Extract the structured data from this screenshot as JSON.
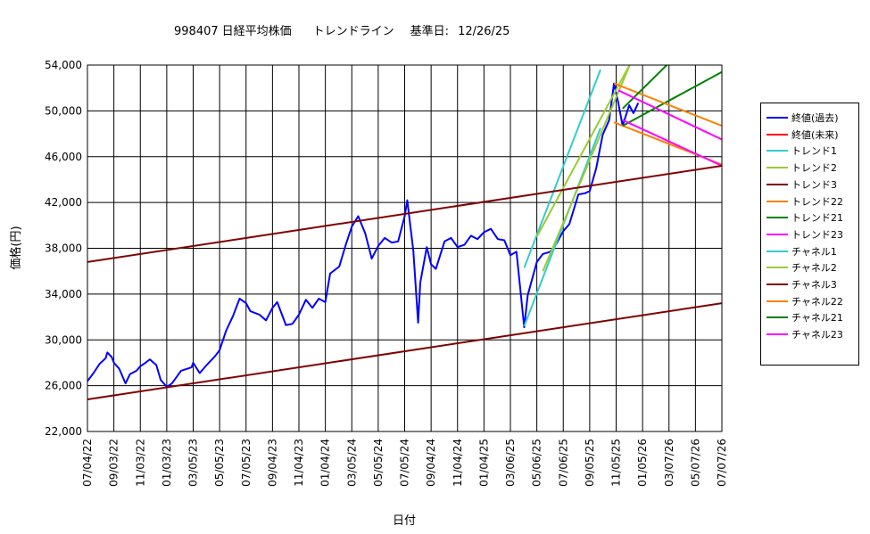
{
  "title": {
    "code": "998407",
    "name": "日経平均株価",
    "subtitle": "トレンドライン",
    "base_label": "基準日:",
    "base_date": "12/26/25"
  },
  "chart_data": {
    "type": "line",
    "title": "998407日経平均株価　トレンドライン　基準日: 12/26/25",
    "xlabel": "日付",
    "ylabel": "価格(円)",
    "ylim": [
      22000,
      54000
    ],
    "yticks": [
      22000,
      26000,
      30000,
      34000,
      38000,
      42000,
      46000,
      50000,
      54000
    ],
    "ytick_labels": [
      "22,000",
      "26,000",
      "30,000",
      "34,000",
      "38,000",
      "42,000",
      "46,000",
      "50,000",
      "54,000"
    ],
    "xlim": [
      "07/04/22",
      "07/07/26"
    ],
    "xtick_labels": [
      "07/04/22",
      "09/03/22",
      "11/03/22",
      "01/03/23",
      "03/05/23",
      "05/05/23",
      "07/05/23",
      "09/04/23",
      "11/04/23",
      "01/04/24",
      "03/05/24",
      "05/05/24",
      "07/05/24",
      "09/04/24",
      "11/04/24",
      "01/04/25",
      "03/06/25",
      "05/06/25",
      "07/06/25",
      "09/05/25",
      "11/05/25",
      "01/05/26",
      "03/07/26",
      "05/07/26",
      "07/07/26"
    ],
    "grid": true,
    "legend_position": "right",
    "series": [
      {
        "name": "終値(過去)",
        "color": "#0000ff",
        "width": 2,
        "points": [
          [
            "07/04/22",
            26400
          ],
          [
            "07/18/22",
            27100
          ],
          [
            "08/01/22",
            27900
          ],
          [
            "08/15/22",
            28400
          ],
          [
            "08/19/22",
            28900
          ],
          [
            "08/29/22",
            28500
          ],
          [
            "09/03/22",
            28000
          ],
          [
            "09/15/22",
            27500
          ],
          [
            "09/30/22",
            26200
          ],
          [
            "10/10/22",
            27000
          ],
          [
            "10/25/22",
            27300
          ],
          [
            "11/03/22",
            27700
          ],
          [
            "11/15/22",
            28000
          ],
          [
            "11/25/22",
            28300
          ],
          [
            "12/10/22",
            27800
          ],
          [
            "12/20/22",
            26500
          ],
          [
            "01/03/23",
            25900
          ],
          [
            "01/15/23",
            26200
          ],
          [
            "02/05/23",
            27300
          ],
          [
            "03/01/23",
            27600
          ],
          [
            "03/05/23",
            28000
          ],
          [
            "03/20/23",
            27100
          ],
          [
            "04/05/23",
            27800
          ],
          [
            "04/25/23",
            28600
          ],
          [
            "05/05/23",
            29100
          ],
          [
            "05/20/23",
            30800
          ],
          [
            "06/05/23",
            32100
          ],
          [
            "06/20/23",
            33600
          ],
          [
            "07/05/23",
            33200
          ],
          [
            "07/15/23",
            32500
          ],
          [
            "08/05/23",
            32200
          ],
          [
            "08/20/23",
            31700
          ],
          [
            "09/04/23",
            32800
          ],
          [
            "09/15/23",
            33300
          ],
          [
            "10/05/23",
            31300
          ],
          [
            "10/20/23",
            31400
          ],
          [
            "11/04/23",
            32200
          ],
          [
            "11/20/23",
            33500
          ],
          [
            "12/05/23",
            32800
          ],
          [
            "12/20/23",
            33600
          ],
          [
            "01/04/24",
            33300
          ],
          [
            "01/15/24",
            35800
          ],
          [
            "02/05/24",
            36400
          ],
          [
            "02/20/24",
            38300
          ],
          [
            "03/05/24",
            39900
          ],
          [
            "03/20/24",
            40800
          ],
          [
            "04/05/24",
            39300
          ],
          [
            "04/20/24",
            37100
          ],
          [
            "05/05/24",
            38200
          ],
          [
            "05/20/24",
            38900
          ],
          [
            "06/05/24",
            38500
          ],
          [
            "06/20/24",
            38600
          ],
          [
            "07/05/24",
            40800
          ],
          [
            "07/11/24",
            42200
          ],
          [
            "07/25/24",
            37800
          ],
          [
            "08/05/24",
            31500
          ],
          [
            "08/10/24",
            35000
          ],
          [
            "08/25/24",
            38100
          ],
          [
            "09/04/24",
            36600
          ],
          [
            "09/15/24",
            36200
          ],
          [
            "10/05/24",
            38600
          ],
          [
            "10/20/24",
            38900
          ],
          [
            "11/04/24",
            38100
          ],
          [
            "11/20/24",
            38300
          ],
          [
            "12/05/24",
            39100
          ],
          [
            "12/20/24",
            38800
          ],
          [
            "01/04/25",
            39400
          ],
          [
            "01/20/25",
            39700
          ],
          [
            "02/05/25",
            38800
          ],
          [
            "02/20/25",
            38700
          ],
          [
            "03/06/25",
            37400
          ],
          [
            "03/20/25",
            37700
          ],
          [
            "04/07/25",
            31100
          ],
          [
            "04/15/25",
            33900
          ],
          [
            "05/06/25",
            36800
          ],
          [
            "05/20/25",
            37500
          ],
          [
            "06/06/25",
            37700
          ],
          [
            "06/20/25",
            38400
          ],
          [
            "07/06/25",
            39500
          ],
          [
            "07/20/25",
            40100
          ],
          [
            "08/10/25",
            42700
          ],
          [
            "08/25/25",
            42800
          ],
          [
            "09/05/25",
            43000
          ],
          [
            "09/20/25",
            45000
          ],
          [
            "10/05/25",
            47900
          ],
          [
            "10/20/25",
            49200
          ],
          [
            "10/31/25",
            52400
          ],
          [
            "11/10/25",
            50700
          ],
          [
            "11/20/25",
            48700
          ],
          [
            "12/05/25",
            50500
          ],
          [
            "12/15/25",
            49800
          ],
          [
            "12/26/25",
            50700
          ]
        ]
      },
      {
        "name": "終値(未来)",
        "color": "#ff0000",
        "width": 2,
        "points": []
      },
      {
        "name": "トレンド1",
        "color": "#33cccc",
        "width": 2,
        "points": [
          [
            "04/07/25",
            31200
          ],
          [
            "09/30/25",
            48500
          ]
        ]
      },
      {
        "name": "トレンド2",
        "color": "#99cc33",
        "width": 2,
        "points": [
          [
            "05/20/25",
            36000
          ],
          [
            "01/20/26",
            58000
          ]
        ]
      },
      {
        "name": "トレンド3",
        "color": "#800000",
        "width": 2,
        "points": [
          [
            "07/04/22",
            24800
          ],
          [
            "07/07/26",
            33200
          ]
        ]
      },
      {
        "name": "トレンド22",
        "color": "#ff8000",
        "width": 2,
        "points": [
          [
            "10/31/25",
            49000
          ],
          [
            "07/07/26",
            45300
          ]
        ]
      },
      {
        "name": "トレンド21",
        "color": "#008000",
        "width": 2,
        "points": [
          [
            "11/20/25",
            48700
          ],
          [
            "07/07/26",
            53400
          ]
        ]
      },
      {
        "name": "トレンド23",
        "color": "#ff00ff",
        "width": 2,
        "points": [
          [
            "11/20/25",
            49200
          ],
          [
            "07/07/26",
            45200
          ]
        ]
      },
      {
        "name": "チャネル1",
        "color": "#33cccc",
        "width": 2,
        "points": [
          [
            "04/07/25",
            36300
          ],
          [
            "09/30/25",
            53600
          ]
        ]
      },
      {
        "name": "チャネル2",
        "color": "#99cc33",
        "width": 2,
        "points": [
          [
            "05/06/25",
            39000
          ],
          [
            "12/20/25",
            55000
          ]
        ]
      },
      {
        "name": "チャネル3",
        "color": "#800000",
        "width": 2,
        "points": [
          [
            "07/04/22",
            36800
          ],
          [
            "07/07/26",
            45200
          ]
        ]
      },
      {
        "name": "チャネル22",
        "color": "#ff8000",
        "width": 2,
        "points": [
          [
            "10/31/25",
            52400
          ],
          [
            "07/07/26",
            48700
          ]
        ]
      },
      {
        "name": "チャネル21",
        "color": "#008000",
        "width": 2,
        "points": [
          [
            "11/20/25",
            50200
          ],
          [
            "03/10/26",
            54300
          ]
        ]
      },
      {
        "name": "チャネル23",
        "color": "#ff00ff",
        "width": 2,
        "points": [
          [
            "11/10/25",
            51800
          ],
          [
            "07/07/26",
            47500
          ]
        ]
      }
    ]
  }
}
